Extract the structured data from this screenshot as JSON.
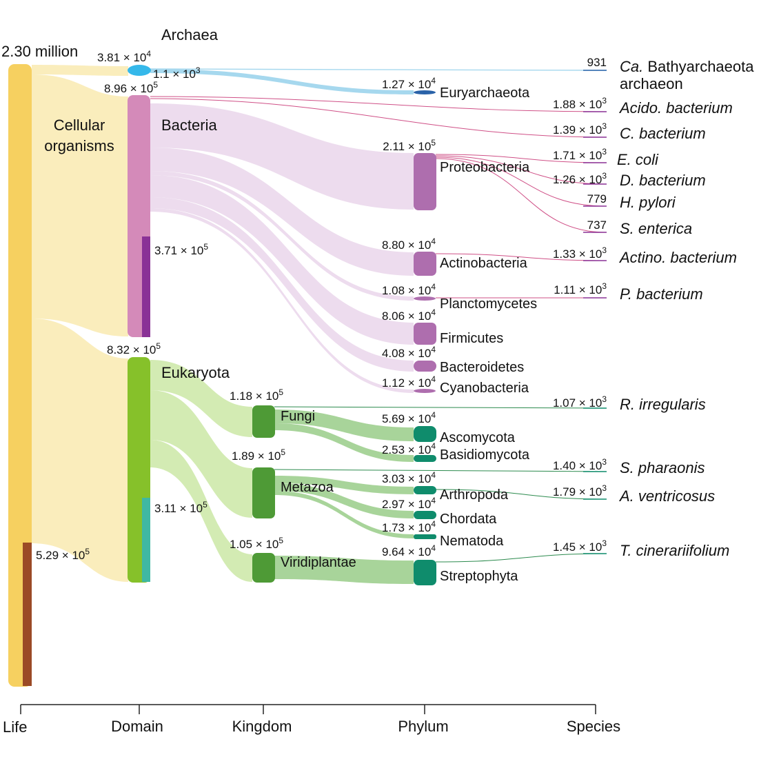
{
  "colors": {
    "life": "#f6d060",
    "life_sub": "#9b4a26",
    "life_flow": "#faedbc",
    "archaea": "#35b8ea",
    "archaea_flow": "#a6d8ee",
    "euryarchaeota": "#2a62a8",
    "bacteria": "#d48ab9",
    "bacteria_sub": "#8a3296",
    "bacteria_flow": "#eddcee",
    "phylum_bacteria": "#ae6eae",
    "species_link_bacteria": "#cf4f86",
    "eukaryota": "#86c12a",
    "eukaryota_sub": "#3fb8a2",
    "eukaryota_flow": "#d3ebb3",
    "kingdom": "#4e9a36",
    "kingdom_flow": "#a8d49a",
    "phylum_euk": "#0f8c6c",
    "species_link_euk": "#2b8a4d"
  },
  "axis": {
    "ticks": [
      "Life",
      "Domain",
      "Kingdom",
      "Phylum",
      "Species"
    ]
  },
  "life": {
    "total": "2.30 million",
    "group": "Cellular\norganisms",
    "sub_value": "5.29 × 10^5"
  },
  "domains": {
    "archaea": {
      "label": "Archaea",
      "value": "3.81 × 10^4",
      "sub_value": "1.1 × 10^3"
    },
    "bacteria": {
      "label": "Bacteria",
      "value": "8.96 × 10^5",
      "sub_value": "3.71 × 10^5"
    },
    "eukaryota": {
      "label": "Eukaryota",
      "value": "8.32 × 10^5",
      "sub_value": "3.11 × 10^5"
    }
  },
  "kingdoms": {
    "fungi": {
      "label": "Fungi",
      "value": "1.18 × 10^5"
    },
    "metazoa": {
      "label": "Metazoa",
      "value": "1.89 × 10^5"
    },
    "viridiplantae": {
      "label": "Viridiplantae",
      "value": "1.05 × 10^5"
    }
  },
  "phyla": {
    "euryarchaeota": {
      "label": "Euryarchaeota",
      "value": "1.27 × 10^4"
    },
    "proteobacteria": {
      "label": "Proteobacteria",
      "value": "2.11 × 10^5"
    },
    "actinobacteria": {
      "label": "Actinobacteria",
      "value": "8.80 × 10^4"
    },
    "planctomycetes": {
      "label": "Planctomycetes",
      "value": "1.08 × 10^4"
    },
    "firmicutes": {
      "label": "Firmicutes",
      "value": "8.06 × 10^4"
    },
    "bacteroidetes": {
      "label": "Bacteroidetes",
      "value": "4.08 × 10^4"
    },
    "cyanobacteria": {
      "label": "Cyanobacteria",
      "value": "1.12 × 10^4"
    },
    "ascomycota": {
      "label": "Ascomycota",
      "value": "5.69 × 10^4"
    },
    "basidiomycota": {
      "label": "Basidiomycota",
      "value": "2.53 × 10^4"
    },
    "arthropoda": {
      "label": "Arthropoda",
      "value": "3.03 × 10^4"
    },
    "chordata": {
      "label": "Chordata",
      "value": "2.97 × 10^4"
    },
    "nematoda": {
      "label": "Nematoda",
      "value": "1.73 × 10^4"
    },
    "streptophyta": {
      "label": "Streptophyta",
      "value": "9.64 × 10^4"
    }
  },
  "species": {
    "bathyarchaeota": {
      "label_prefix": "Ca.",
      "label_rest": "Bathyarchaeota",
      "label_line2": "archaeon",
      "value": "931"
    },
    "acido": {
      "label": "Acido. bacterium",
      "value": "1.88 × 10^3"
    },
    "cbact": {
      "label": "C. bacterium",
      "value": "1.39 × 10^3"
    },
    "ecoli": {
      "label": "E. coli",
      "value": "1.71 × 10^3"
    },
    "dbact": {
      "label": "D. bacterium",
      "value": "1.26 × 10^3"
    },
    "hpylori": {
      "label": "H. pylori",
      "value": "779"
    },
    "senterica": {
      "label": "S. enterica",
      "value": "737"
    },
    "actino": {
      "label": "Actino. bacterium",
      "value": "1.33 × 10^3"
    },
    "pbact": {
      "label": "P. bacterium",
      "value": "1.11 × 10^3"
    },
    "rirregularis": {
      "label": "R. irregularis",
      "value": "1.07 × 10^3"
    },
    "spharaonis": {
      "label": "S. pharaonis",
      "value": "1.40 × 10^3"
    },
    "aventricosus": {
      "label": "A. ventricosus",
      "value": "1.79 × 10^3"
    },
    "tcinerariifolium": {
      "label": "T. cinerariifolium",
      "value": "1.45 × 10^3"
    }
  }
}
